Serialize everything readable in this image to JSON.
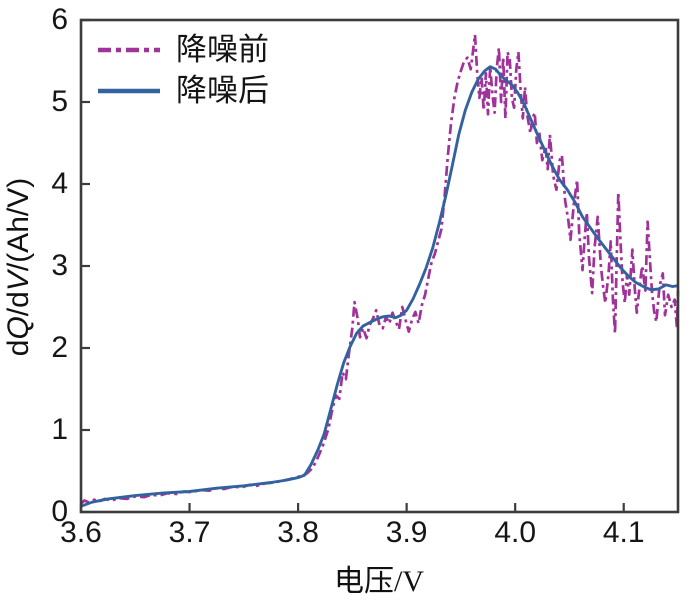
{
  "chart_data": {
    "type": "line",
    "title": "",
    "xlabel": "电压/V",
    "ylabel": "dQ/dV/(Ah/V)",
    "ylabel_parts": {
      "p0": "d",
      "p1": "Q",
      "p2": "/d",
      "p3": "V",
      "p4": "/(Ah/V)"
    },
    "xlim": [
      3.6,
      4.15
    ],
    "ylim": [
      0,
      6
    ],
    "x_ticks": [
      3.6,
      3.7,
      3.8,
      3.9,
      4.0,
      4.1
    ],
    "x_tick_labels": [
      "3.6",
      "3.7",
      "3.8",
      "3.9",
      "4.0",
      "4.1"
    ],
    "y_ticks": [
      0,
      1,
      2,
      3,
      4,
      5,
      6
    ],
    "y_tick_labels": [
      "0",
      "1",
      "2",
      "3",
      "4",
      "5",
      "6"
    ],
    "grid": false,
    "legend_position": "top-left",
    "frame_color": "#3c3c3c",
    "series": [
      {
        "name": "降噪前",
        "style": "dash-dot",
        "color": "#a0339a",
        "points": [
          [
            3.6,
            0.1
          ],
          [
            3.603,
            0.14
          ],
          [
            3.607,
            0.12
          ],
          [
            3.612,
            0.15
          ],
          [
            3.617,
            0.13
          ],
          [
            3.622,
            0.16
          ],
          [
            3.628,
            0.14
          ],
          [
            3.635,
            0.17
          ],
          [
            3.642,
            0.16
          ],
          [
            3.65,
            0.19
          ],
          [
            3.658,
            0.18
          ],
          [
            3.665,
            0.21
          ],
          [
            3.672,
            0.2
          ],
          [
            3.68,
            0.23
          ],
          [
            3.688,
            0.22
          ],
          [
            3.695,
            0.25
          ],
          [
            3.702,
            0.24
          ],
          [
            3.71,
            0.27
          ],
          [
            3.718,
            0.26
          ],
          [
            3.725,
            0.29
          ],
          [
            3.732,
            0.28
          ],
          [
            3.74,
            0.31
          ],
          [
            3.748,
            0.3
          ],
          [
            3.755,
            0.33
          ],
          [
            3.762,
            0.32
          ],
          [
            3.77,
            0.35
          ],
          [
            3.778,
            0.36
          ],
          [
            3.785,
            0.38
          ],
          [
            3.792,
            0.4
          ],
          [
            3.798,
            0.42
          ],
          [
            3.803,
            0.44
          ],
          [
            3.808,
            0.47
          ],
          [
            3.812,
            0.52
          ],
          [
            3.816,
            0.6
          ],
          [
            3.82,
            0.72
          ],
          [
            3.824,
            0.85
          ],
          [
            3.828,
            1.02
          ],
          [
            3.832,
            1.28
          ],
          [
            3.835,
            1.42
          ],
          [
            3.838,
            1.38
          ],
          [
            3.841,
            1.7
          ],
          [
            3.844,
            1.62
          ],
          [
            3.847,
            1.95
          ],
          [
            3.85,
            2.25
          ],
          [
            3.852,
            2.56
          ],
          [
            3.855,
            2.35
          ],
          [
            3.857,
            2.13
          ],
          [
            3.86,
            2.24
          ],
          [
            3.863,
            2.12
          ],
          [
            3.866,
            2.28
          ],
          [
            3.869,
            2.36
          ],
          [
            3.872,
            2.46
          ],
          [
            3.875,
            2.28
          ],
          [
            3.878,
            2.24
          ],
          [
            3.881,
            2.38
          ],
          [
            3.884,
            2.3
          ],
          [
            3.887,
            2.43
          ],
          [
            3.89,
            2.32
          ],
          [
            3.893,
            2.23
          ],
          [
            3.896,
            2.5
          ],
          [
            3.899,
            2.34
          ],
          [
            3.902,
            2.2
          ],
          [
            3.905,
            2.35
          ],
          [
            3.908,
            2.44
          ],
          [
            3.911,
            2.3
          ],
          [
            3.914,
            2.52
          ],
          [
            3.917,
            2.65
          ],
          [
            3.92,
            2.85
          ],
          [
            3.923,
            3.05
          ],
          [
            3.926,
            3.15
          ],
          [
            3.929,
            3.3
          ],
          [
            3.932,
            3.45
          ],
          [
            3.935,
            3.85
          ],
          [
            3.938,
            4.35
          ],
          [
            3.941,
            4.75
          ],
          [
            3.944,
            5.05
          ],
          [
            3.947,
            5.25
          ],
          [
            3.95,
            5.38
          ],
          [
            3.953,
            5.5
          ],
          [
            3.956,
            5.54
          ],
          [
            3.959,
            5.4
          ],
          [
            3.961,
            5.6
          ],
          [
            3.963,
            5.82
          ],
          [
            3.965,
            5.35
          ],
          [
            3.967,
            5.05
          ],
          [
            3.969,
            5.3
          ],
          [
            3.971,
            4.9
          ],
          [
            3.973,
            5.35
          ],
          [
            3.975,
            4.85
          ],
          [
            3.977,
            5.43
          ],
          [
            3.979,
            5.1
          ],
          [
            3.981,
            4.87
          ],
          [
            3.983,
            5.4
          ],
          [
            3.985,
            5.66
          ],
          [
            3.987,
            5.0
          ],
          [
            3.989,
            5.55
          ],
          [
            3.991,
            4.8
          ],
          [
            3.993,
            5.61
          ],
          [
            3.995,
            5.51
          ],
          [
            3.997,
            5.05
          ],
          [
            3.999,
            4.93
          ],
          [
            4.001,
            5.4
          ],
          [
            4.003,
            5.61
          ],
          [
            4.005,
            5.15
          ],
          [
            4.007,
            4.8
          ],
          [
            4.009,
            5.18
          ],
          [
            4.011,
            4.85
          ],
          [
            4.014,
            4.62
          ],
          [
            4.016,
            4.8
          ],
          [
            4.018,
            4.87
          ],
          [
            4.02,
            4.5
          ],
          [
            4.022,
            4.65
          ],
          [
            4.025,
            4.29
          ],
          [
            4.028,
            4.45
          ],
          [
            4.03,
            4.18
          ],
          [
            4.032,
            4.6
          ],
          [
            4.035,
            4.1
          ],
          [
            4.038,
            3.93
          ],
          [
            4.041,
            4.29
          ],
          [
            4.043,
            4.35
          ],
          [
            4.046,
            3.8
          ],
          [
            4.049,
            3.55
          ],
          [
            4.051,
            3.32
          ],
          [
            4.054,
            3.75
          ],
          [
            4.057,
            4.05
          ],
          [
            4.059,
            3.4
          ],
          [
            4.062,
            2.95
          ],
          [
            4.064,
            3.35
          ],
          [
            4.066,
            3.65
          ],
          [
            4.068,
            3.1
          ],
          [
            4.071,
            2.67
          ],
          [
            4.073,
            3.2
          ],
          [
            4.076,
            3.6
          ],
          [
            4.079,
            3.0
          ],
          [
            4.081,
            2.75
          ],
          [
            4.083,
            2.55
          ],
          [
            4.086,
            2.9
          ],
          [
            4.088,
            3.3
          ],
          [
            4.09,
            2.6
          ],
          [
            4.092,
            2.18
          ],
          [
            4.095,
            3.9
          ],
          [
            4.097,
            3.3
          ],
          [
            4.099,
            2.8
          ],
          [
            4.101,
            2.55
          ],
          [
            4.103,
            2.9
          ],
          [
            4.105,
            2.65
          ],
          [
            4.108,
            3.2
          ],
          [
            4.11,
            2.75
          ],
          [
            4.112,
            2.43
          ],
          [
            4.115,
            2.8
          ],
          [
            4.117,
            3.0
          ],
          [
            4.12,
            2.7
          ],
          [
            4.122,
            3.54
          ],
          [
            4.124,
            3.1
          ],
          [
            4.126,
            2.7
          ],
          [
            4.128,
            2.45
          ],
          [
            4.13,
            2.32
          ],
          [
            4.133,
            2.75
          ],
          [
            4.136,
            2.91
          ],
          [
            4.138,
            2.4
          ],
          [
            4.141,
            2.65
          ],
          [
            4.144,
            2.5
          ],
          [
            4.147,
            2.59
          ],
          [
            4.149,
            2.25
          ],
          [
            4.15,
            2.7
          ]
        ]
      },
      {
        "name": "降噪后",
        "style": "solid",
        "color": "#33639f",
        "points": [
          [
            3.6,
            0.07
          ],
          [
            3.61,
            0.12
          ],
          [
            3.625,
            0.16
          ],
          [
            3.65,
            0.2
          ],
          [
            3.675,
            0.23
          ],
          [
            3.7,
            0.25
          ],
          [
            3.725,
            0.29
          ],
          [
            3.75,
            0.32
          ],
          [
            3.775,
            0.36
          ],
          [
            3.79,
            0.39
          ],
          [
            3.8,
            0.42
          ],
          [
            3.806,
            0.45
          ],
          [
            3.812,
            0.58
          ],
          [
            3.818,
            0.75
          ],
          [
            3.824,
            0.95
          ],
          [
            3.83,
            1.25
          ],
          [
            3.836,
            1.55
          ],
          [
            3.842,
            1.82
          ],
          [
            3.848,
            2.02
          ],
          [
            3.854,
            2.18
          ],
          [
            3.86,
            2.27
          ],
          [
            3.866,
            2.31
          ],
          [
            3.872,
            2.35
          ],
          [
            3.878,
            2.38
          ],
          [
            3.884,
            2.39
          ],
          [
            3.89,
            2.37
          ],
          [
            3.895,
            2.4
          ],
          [
            3.9,
            2.46
          ],
          [
            3.906,
            2.6
          ],
          [
            3.912,
            2.78
          ],
          [
            3.918,
            2.98
          ],
          [
            3.924,
            3.22
          ],
          [
            3.93,
            3.52
          ],
          [
            3.936,
            3.85
          ],
          [
            3.942,
            4.22
          ],
          [
            3.948,
            4.6
          ],
          [
            3.954,
            4.9
          ],
          [
            3.96,
            5.12
          ],
          [
            3.966,
            5.28
          ],
          [
            3.972,
            5.38
          ],
          [
            3.977,
            5.43
          ],
          [
            3.982,
            5.4
          ],
          [
            3.987,
            5.32
          ],
          [
            3.992,
            5.26
          ],
          [
            3.997,
            5.21
          ],
          [
            4.002,
            5.12
          ],
          [
            4.008,
            4.98
          ],
          [
            4.014,
            4.8
          ],
          [
            4.02,
            4.62
          ],
          [
            4.027,
            4.42
          ],
          [
            4.034,
            4.22
          ],
          [
            4.041,
            4.05
          ],
          [
            4.048,
            3.93
          ],
          [
            4.055,
            3.78
          ],
          [
            4.062,
            3.6
          ],
          [
            4.069,
            3.47
          ],
          [
            4.076,
            3.34
          ],
          [
            4.083,
            3.22
          ],
          [
            4.09,
            3.1
          ],
          [
            4.097,
            2.98
          ],
          [
            4.104,
            2.88
          ],
          [
            4.111,
            2.8
          ],
          [
            4.118,
            2.75
          ],
          [
            4.125,
            2.71
          ],
          [
            4.132,
            2.72
          ],
          [
            4.139,
            2.77
          ],
          [
            4.145,
            2.75
          ],
          [
            4.15,
            2.76
          ]
        ]
      }
    ]
  }
}
